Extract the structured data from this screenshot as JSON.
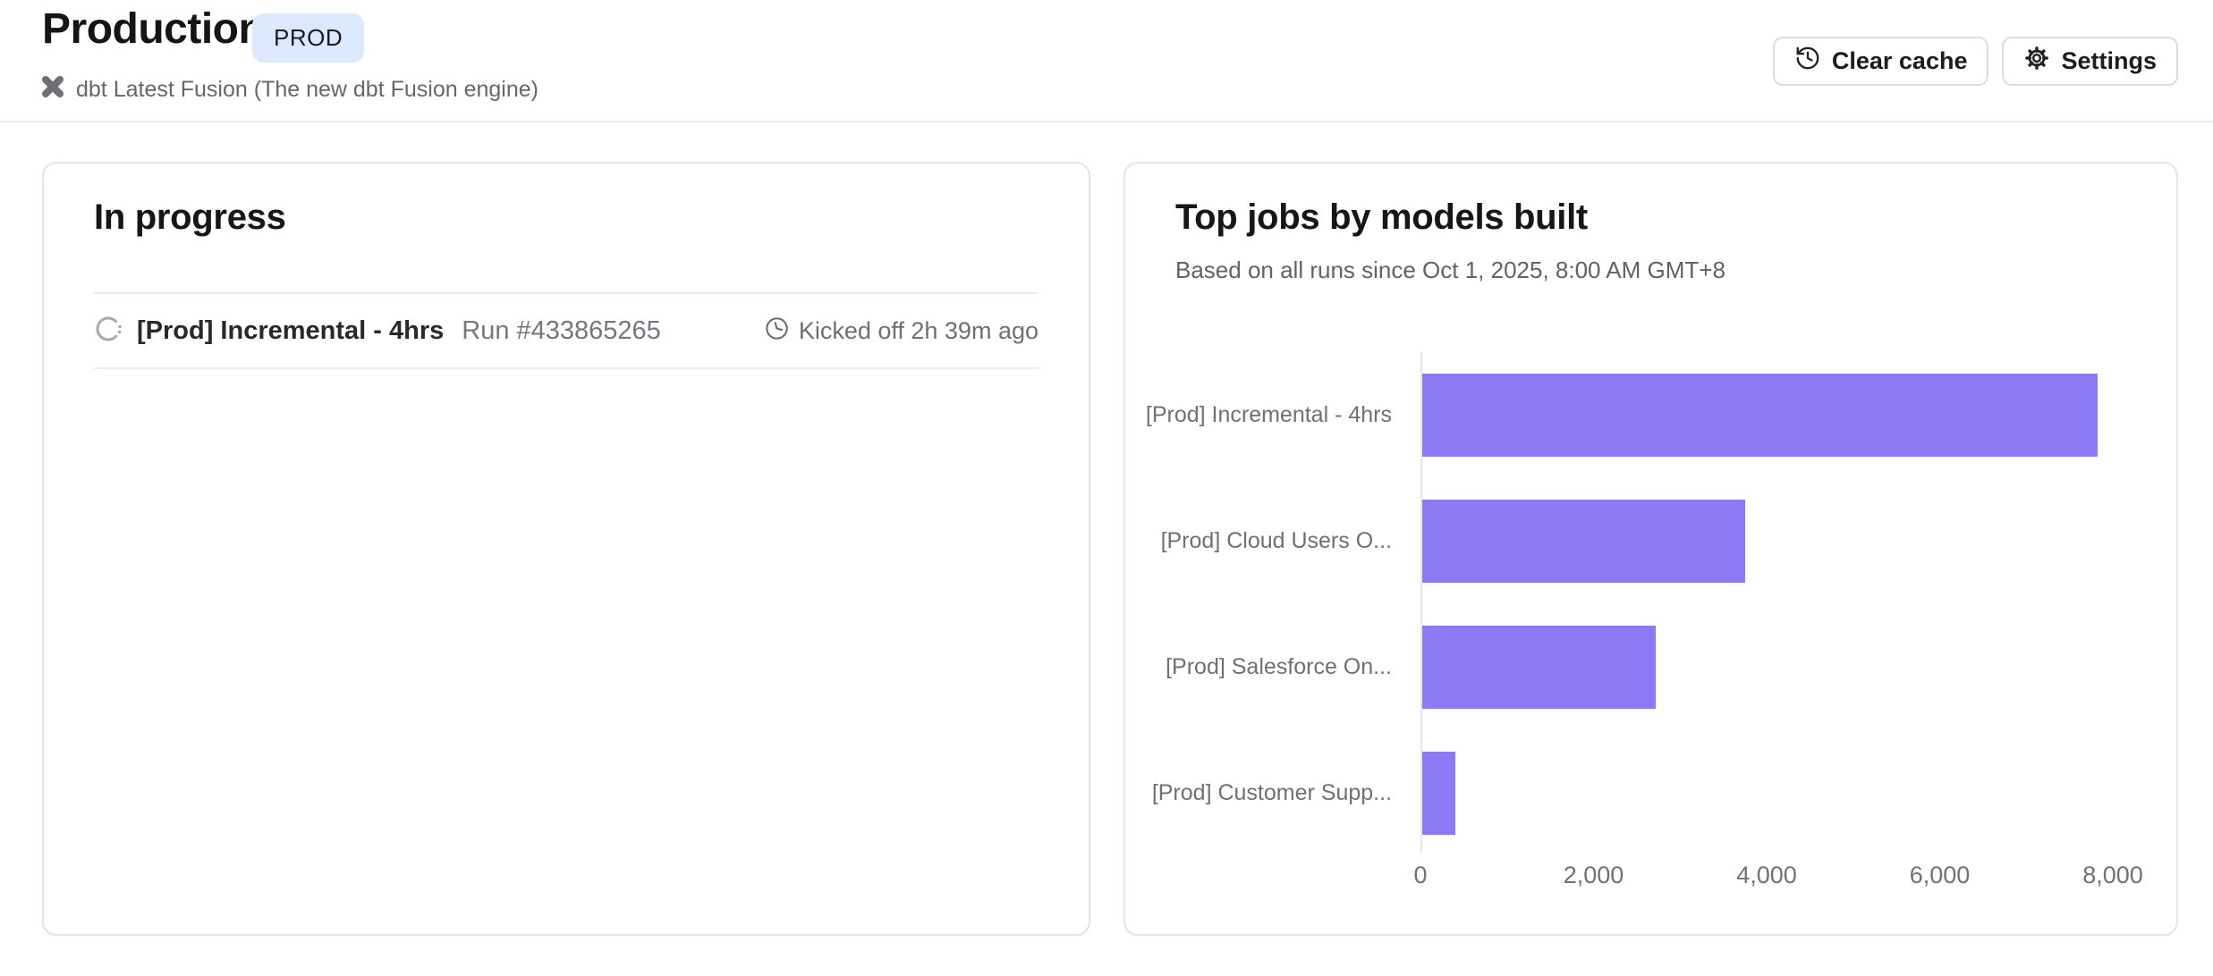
{
  "header": {
    "title": "Production",
    "badge": "PROD",
    "subtitle": "dbt Latest Fusion (The new dbt Fusion engine)",
    "clear_cache_label": "Clear cache",
    "settings_label": "Settings"
  },
  "in_progress": {
    "heading": "In progress",
    "run": {
      "job_name": "[Prod] Incremental - 4hrs",
      "run_label": "Run #433865265",
      "kicked_off": "Kicked off 2h 39m ago"
    }
  },
  "chart_data": {
    "type": "bar",
    "orientation": "horizontal",
    "title": "Top jobs by models built",
    "subtitle": "Based on all runs since Oct 1, 2025, 8:00 AM GMT+8",
    "categories": [
      "[Prod] Incremental - 4hrs",
      "[Prod] Cloud Users O...",
      "[Prod] Salesforce On...",
      "[Prod] Customer Supp..."
    ],
    "values": [
      7800,
      3730,
      2700,
      380
    ],
    "xlim": [
      0,
      8000
    ],
    "xticks": [
      0,
      2000,
      4000,
      6000,
      8000
    ],
    "xtick_labels": [
      "0",
      "2,000",
      "4,000",
      "6,000",
      "8,000"
    ],
    "xlabel": "",
    "ylabel": "",
    "grid": false,
    "legend": "none",
    "bar_color": "#8B7AF4",
    "axis_color": "#E6E6EA"
  },
  "colors": {
    "accent_purple": "#8B7AF4",
    "badge_bg": "#DBE9FE",
    "icon_gray": "#6F6F74",
    "spinner_gray": "#A8A8AE"
  }
}
